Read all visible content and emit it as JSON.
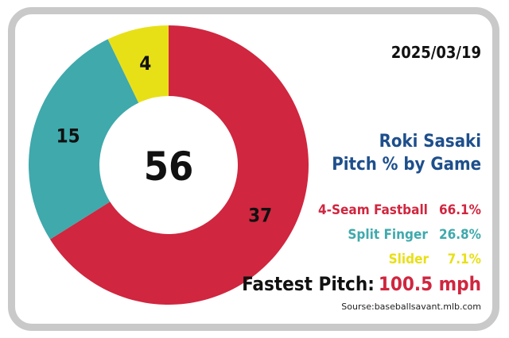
{
  "date": "2025/03/19",
  "title_line1": "Roki Sasaki",
  "title_line2": "Pitch % by Game",
  "total": "56",
  "legend": [
    {
      "name": "4-Seam Fastball",
      "pct": "66.1%",
      "color": "#d0263f"
    },
    {
      "name": "Split Finger",
      "pct": "26.8%",
      "color": "#3fa9ac"
    },
    {
      "name": "Slider",
      "pct": "7.1%",
      "color": "#e8e017"
    }
  ],
  "fastest_label": "Fastest Pitch:",
  "fastest_value": "100.5 mph",
  "source": "Sourse:baseballsavant.mlb.com",
  "chart_data": {
    "type": "pie",
    "categories": [
      "4-Seam Fastball",
      "Split Finger",
      "Slider"
    ],
    "values": [
      37,
      15,
      4
    ],
    "percentages": [
      66.1,
      26.8,
      7.1
    ],
    "colors": [
      "#d0263f",
      "#3fa9ac",
      "#e8e017"
    ],
    "center_label": "56",
    "donut": true
  }
}
